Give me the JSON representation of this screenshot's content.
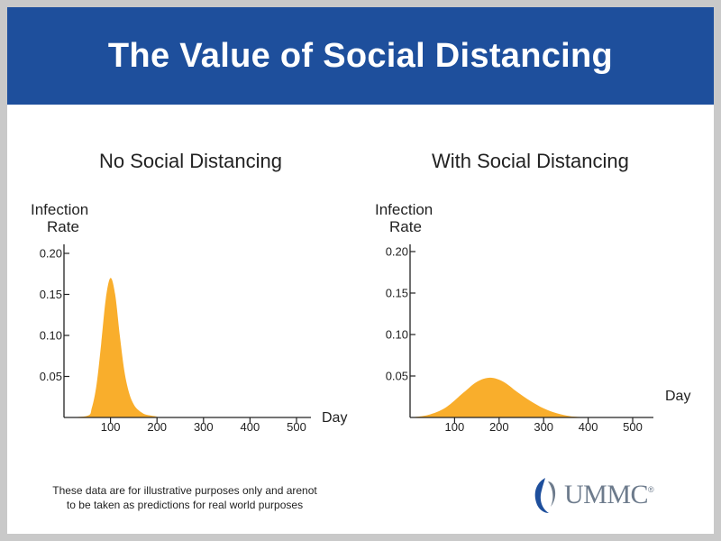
{
  "header": {
    "title": "The Value of Social Distancing"
  },
  "note": {
    "line1": "These data are for illustrative purposes only and arenot",
    "line2": "to be taken as predictions for real world purposes"
  },
  "logo": {
    "text": "UMMC",
    "mark": "®"
  },
  "colors": {
    "banner": "#1e4f9c",
    "fill": "#f9ae2c",
    "logo": "#6d7b8c"
  },
  "chart_data": [
    {
      "type": "area",
      "title": "No Social Distancing",
      "xlabel": "Day",
      "ylabel_line1": "Infection",
      "ylabel_line2": "Rate",
      "xlim": [
        0,
        500
      ],
      "ylim": [
        0,
        0.2
      ],
      "x_ticks": [
        100,
        200,
        300,
        400,
        500
      ],
      "x_tick_labels": [
        "100",
        "200",
        "300",
        "400",
        "500"
      ],
      "y_ticks": [
        0.05,
        0.1,
        0.15,
        0.2
      ],
      "y_tick_labels": [
        "0.05",
        "0.10",
        "0.15",
        "0.20"
      ],
      "x": [
        0,
        50,
        60,
        70,
        80,
        90,
        100,
        110,
        120,
        130,
        140,
        150,
        160,
        170,
        180,
        200,
        220,
        500
      ],
      "y": [
        0,
        0.002,
        0.012,
        0.04,
        0.09,
        0.145,
        0.17,
        0.15,
        0.1,
        0.056,
        0.03,
        0.016,
        0.009,
        0.005,
        0.003,
        0.0012,
        0,
        0
      ]
    },
    {
      "type": "area",
      "title": "With Social Distancing",
      "xlabel": "Day",
      "ylabel_line1": "Infection",
      "ylabel_line2": "Rate",
      "xlim": [
        0,
        500
      ],
      "ylim": [
        0,
        0.2
      ],
      "x_ticks": [
        100,
        200,
        300,
        400,
        500
      ],
      "x_tick_labels": [
        "100",
        "200",
        "300",
        "400",
        "500"
      ],
      "y_ticks": [
        0.05,
        0.1,
        0.15,
        0.2
      ],
      "y_tick_labels": [
        "0.05",
        "0.10",
        "0.15",
        "0.20"
      ],
      "x": [
        0,
        40,
        80,
        120,
        150,
        180,
        210,
        240,
        270,
        300,
        330,
        360,
        390,
        420
      ],
      "y": [
        0,
        0.003,
        0.012,
        0.03,
        0.043,
        0.048,
        0.043,
        0.031,
        0.02,
        0.011,
        0.005,
        0.0015,
        0.0003,
        0
      ]
    }
  ]
}
